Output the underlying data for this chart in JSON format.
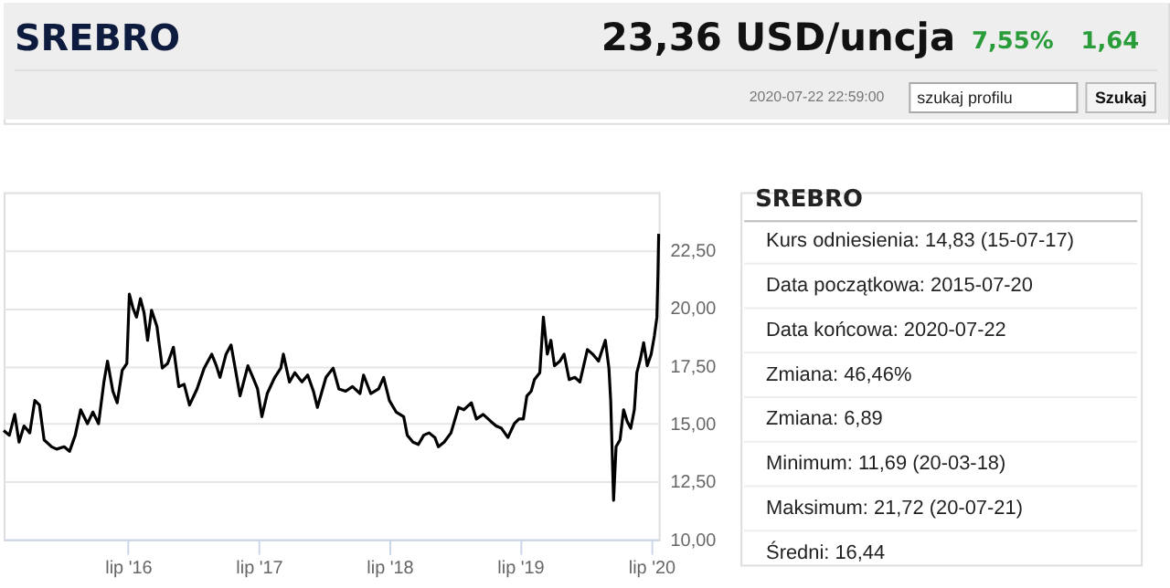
{
  "chart_data": [
    {
      "type": "other",
      "title": "SREBRO",
      "annotations": [
        "23,36 USD/uncja",
        "7,55%",
        "1,64",
        "2020-07-22 22:59:00",
        "szukaj profilu",
        "Szukaj"
      ]
    },
    {
      "type": "line",
      "xlim": [
        "2015-07-20",
        "2020-07-22"
      ],
      "ylim": [
        10,
        25
      ],
      "xticks": [
        {
          "value": "2016-07-01",
          "label": "lip '16"
        },
        {
          "value": "2017-07-01",
          "label": "lip '17"
        },
        {
          "value": "2018-07-01",
          "label": "lip '18"
        },
        {
          "value": "2019-07-01",
          "label": "lip '19"
        },
        {
          "value": "2020-07-01",
          "label": "lip '20"
        }
      ],
      "yticks": [
        {
          "value": 10,
          "label": "10,00"
        },
        {
          "value": 12.5,
          "label": "12,50"
        },
        {
          "value": 15,
          "label": "15,00"
        },
        {
          "value": 17.5,
          "label": "17,50"
        },
        {
          "value": 20,
          "label": "20,00"
        },
        {
          "value": 22.5,
          "label": "22,50"
        },
        {
          "value": 25,
          "label": null
        }
      ],
      "grid": "y",
      "marker": "none",
      "line_style": "solid",
      "x": [
        "2015-07-20",
        "2015-08-05",
        "2015-08-20",
        "2015-09-01",
        "2015-09-15",
        "2015-10-01",
        "2015-10-15",
        "2015-10-28",
        "2015-11-10",
        "2015-12-01",
        "2015-12-15",
        "2016-01-05",
        "2016-01-20",
        "2016-02-05",
        "2016-02-20",
        "2016-03-10",
        "2016-03-25",
        "2016-04-10",
        "2016-04-25",
        "2016-05-05",
        "2016-05-20",
        "2016-06-01",
        "2016-06-15",
        "2016-06-28",
        "2016-07-05",
        "2016-07-15",
        "2016-07-25",
        "2016-08-05",
        "2016-08-15",
        "2016-08-25",
        "2016-09-05",
        "2016-09-20",
        "2016-10-05",
        "2016-10-20",
        "2016-11-05",
        "2016-11-20",
        "2016-12-05",
        "2016-12-20",
        "2017-01-10",
        "2017-01-30",
        "2017-02-20",
        "2017-03-05",
        "2017-03-15",
        "2017-04-01",
        "2017-04-15",
        "2017-05-01",
        "2017-05-10",
        "2017-06-01",
        "2017-06-15",
        "2017-06-28",
        "2017-07-10",
        "2017-07-25",
        "2017-08-15",
        "2017-09-01",
        "2017-09-08",
        "2017-09-25",
        "2017-10-10",
        "2017-10-30",
        "2017-11-15",
        "2017-12-01",
        "2017-12-12",
        "2018-01-05",
        "2018-01-25",
        "2018-02-10",
        "2018-03-01",
        "2018-03-20",
        "2018-04-10",
        "2018-04-20",
        "2018-05-10",
        "2018-06-01",
        "2018-06-15",
        "2018-07-01",
        "2018-07-20",
        "2018-08-10",
        "2018-08-20",
        "2018-09-05",
        "2018-09-20",
        "2018-10-05",
        "2018-10-20",
        "2018-11-05",
        "2018-11-15",
        "2018-12-01",
        "2018-12-20",
        "2019-01-10",
        "2019-01-25",
        "2019-02-15",
        "2019-03-01",
        "2019-03-20",
        "2019-04-10",
        "2019-04-25",
        "2019-05-10",
        "2019-05-28",
        "2019-06-15",
        "2019-06-28",
        "2019-07-10",
        "2019-07-20",
        "2019-08-01",
        "2019-08-10",
        "2019-08-25",
        "2019-09-04",
        "2019-09-15",
        "2019-09-25",
        "2019-10-05",
        "2019-10-20",
        "2019-11-01",
        "2019-11-15",
        "2019-12-01",
        "2019-12-15",
        "2020-01-05",
        "2020-01-20",
        "2020-02-05",
        "2020-02-24",
        "2020-03-05",
        "2020-03-10",
        "2020-03-18",
        "2020-03-25",
        "2020-04-05",
        "2020-04-15",
        "2020-04-25",
        "2020-05-05",
        "2020-05-15",
        "2020-05-22",
        "2020-06-01",
        "2020-06-10",
        "2020-06-20",
        "2020-07-01",
        "2020-07-10",
        "2020-07-17",
        "2020-07-20",
        "2020-07-22"
      ],
      "series": [
        {
          "color": "#000000",
          "values": [
            14.7,
            14.5,
            15.4,
            14.2,
            14.9,
            14.6,
            16.0,
            15.8,
            14.3,
            14.0,
            13.9,
            14.0,
            13.8,
            14.5,
            15.6,
            15.0,
            15.5,
            15.0,
            16.8,
            17.7,
            16.4,
            15.9,
            17.3,
            17.6,
            20.6,
            20.0,
            19.6,
            20.4,
            19.8,
            18.6,
            19.9,
            19.2,
            17.4,
            17.6,
            18.3,
            16.6,
            16.7,
            15.8,
            16.5,
            17.4,
            18.0,
            17.5,
            17.0,
            18.0,
            18.4,
            17.0,
            16.2,
            17.5,
            17.0,
            16.5,
            15.3,
            16.3,
            17.0,
            17.4,
            18.0,
            16.8,
            17.2,
            16.8,
            17.1,
            16.4,
            15.7,
            17.0,
            17.4,
            16.5,
            16.4,
            16.6,
            16.3,
            17.1,
            16.3,
            16.5,
            17.0,
            16.0,
            15.5,
            15.3,
            14.5,
            14.2,
            14.1,
            14.5,
            14.6,
            14.4,
            14.0,
            14.2,
            14.6,
            15.7,
            15.6,
            15.9,
            15.2,
            15.4,
            15.1,
            14.9,
            14.8,
            14.4,
            15.0,
            15.2,
            15.2,
            16.2,
            16.4,
            16.9,
            17.2,
            19.6,
            18.0,
            18.6,
            17.5,
            17.7,
            18.0,
            16.9,
            17.0,
            16.8,
            18.2,
            18.0,
            17.7,
            18.6,
            17.4,
            16.0,
            11.69,
            14.0,
            14.3,
            15.6,
            15.1,
            14.8,
            15.6,
            17.2,
            17.8,
            18.5,
            17.5,
            18.0,
            18.8,
            19.6,
            21.5,
            23.2
          ]
        }
      ]
    },
    {
      "type": "other",
      "title": "SREBRO",
      "annotations": [
        "Kurs odniesienia: 14,83 (15-07-17)",
        "Data początkowa: 2015-07-20",
        "Data końcowa: 2020-07-22",
        "Zmiana: 46,46%",
        "Zmiana: 6,89",
        "Minimum: 11,69 (20-03-18)",
        "Maksimum: 21,72 (20-07-21)",
        "Średni: 16,44"
      ]
    }
  ]
}
